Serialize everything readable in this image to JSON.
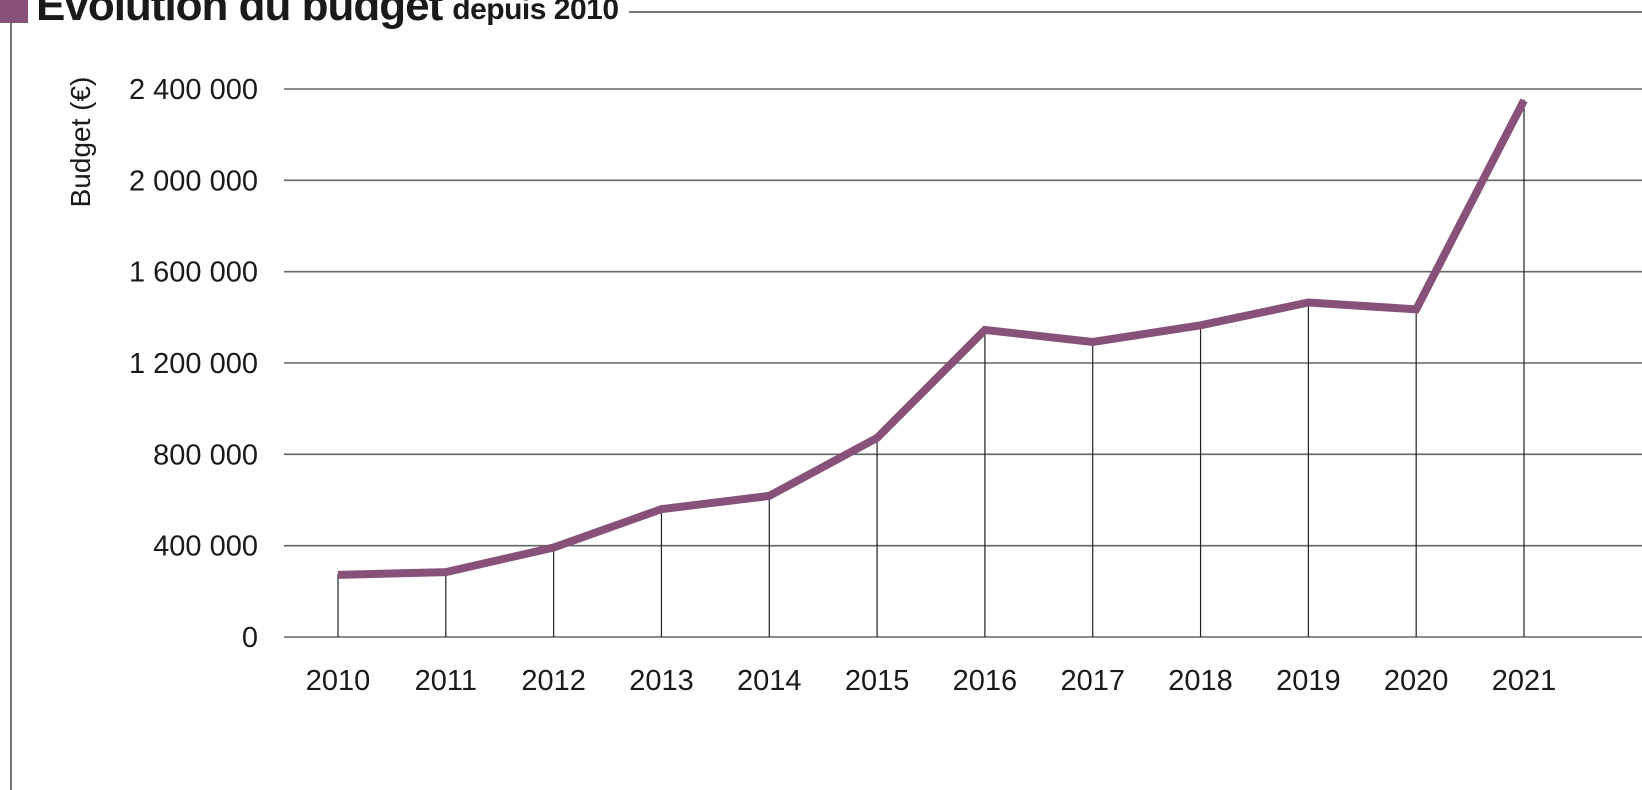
{
  "chart_data": {
    "type": "line",
    "title": "Évolution du budget",
    "subtitle": "depuis 2010",
    "xlabel": "",
    "ylabel": "Budget (€)",
    "categories": [
      "2010",
      "2011",
      "2012",
      "2013",
      "2014",
      "2015",
      "2016",
      "2017",
      "2018",
      "2019",
      "2020",
      "2021"
    ],
    "series": [
      {
        "values": [
          272000,
          284000,
          392000,
          560000,
          618000,
          872000,
          1345000,
          1292000,
          1365000,
          1465000,
          1435000,
          2350000
        ],
        "color": "#87517a"
      }
    ],
    "ylim": [
      0,
      2400000
    ],
    "yticks": [
      0,
      400000,
      800000,
      1200000,
      1600000,
      2000000,
      2400000
    ],
    "ytick_labels": [
      "0",
      "400 000",
      "800 000",
      "1 200 000",
      "1 600 000",
      "2 000 000",
      "2 400 000"
    ],
    "grid": "horizontal",
    "legend": "none"
  }
}
